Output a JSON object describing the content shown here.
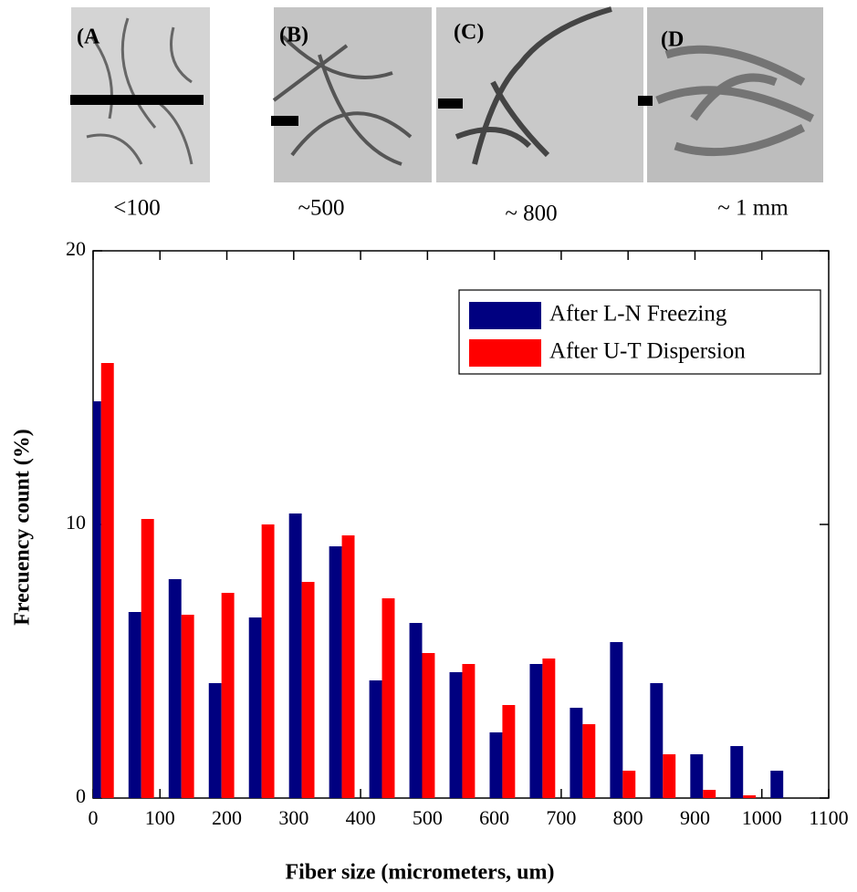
{
  "chart_data": {
    "type": "bar",
    "panels": [
      {
        "label": "(A",
        "caption": "<100"
      },
      {
        "label": "(B)",
        "caption": "~500"
      },
      {
        "label": "(C)",
        "caption": "~ 800"
      },
      {
        "label": "(D",
        "caption": "~ 1 mm"
      }
    ],
    "x_label": "Fiber size (micrometers, um)",
    "y_label": "Frecuency count (%)",
    "x": [
      12,
      72,
      132,
      192,
      252,
      312,
      372,
      432,
      492,
      552,
      612,
      672,
      732,
      792,
      852,
      912,
      972,
      1032
    ],
    "series": [
      {
        "name": "After L-N Freezing",
        "color": "#000080",
        "values": [
          14.5,
          6.8,
          8.0,
          4.2,
          6.6,
          10.4,
          9.2,
          4.3,
          6.4,
          4.6,
          2.4,
          4.9,
          3.3,
          5.7,
          4.2,
          1.6,
          1.9,
          1.0
        ]
      },
      {
        "name": "After U-T Dispersion",
        "color": "#ff0000",
        "values": [
          15.9,
          10.2,
          6.7,
          7.5,
          10.0,
          7.9,
          9.6,
          7.3,
          5.3,
          4.9,
          3.4,
          5.1,
          2.7,
          1.0,
          1.6,
          0.3,
          0.1,
          null
        ]
      }
    ],
    "xlim": [
      0,
      1100
    ],
    "xticks": [
      0,
      100,
      200,
      300,
      400,
      500,
      600,
      700,
      800,
      900,
      1000,
      1100
    ],
    "ylim": [
      0,
      20
    ],
    "yticks": [
      0,
      10,
      20
    ],
    "legend": "upper-right"
  }
}
